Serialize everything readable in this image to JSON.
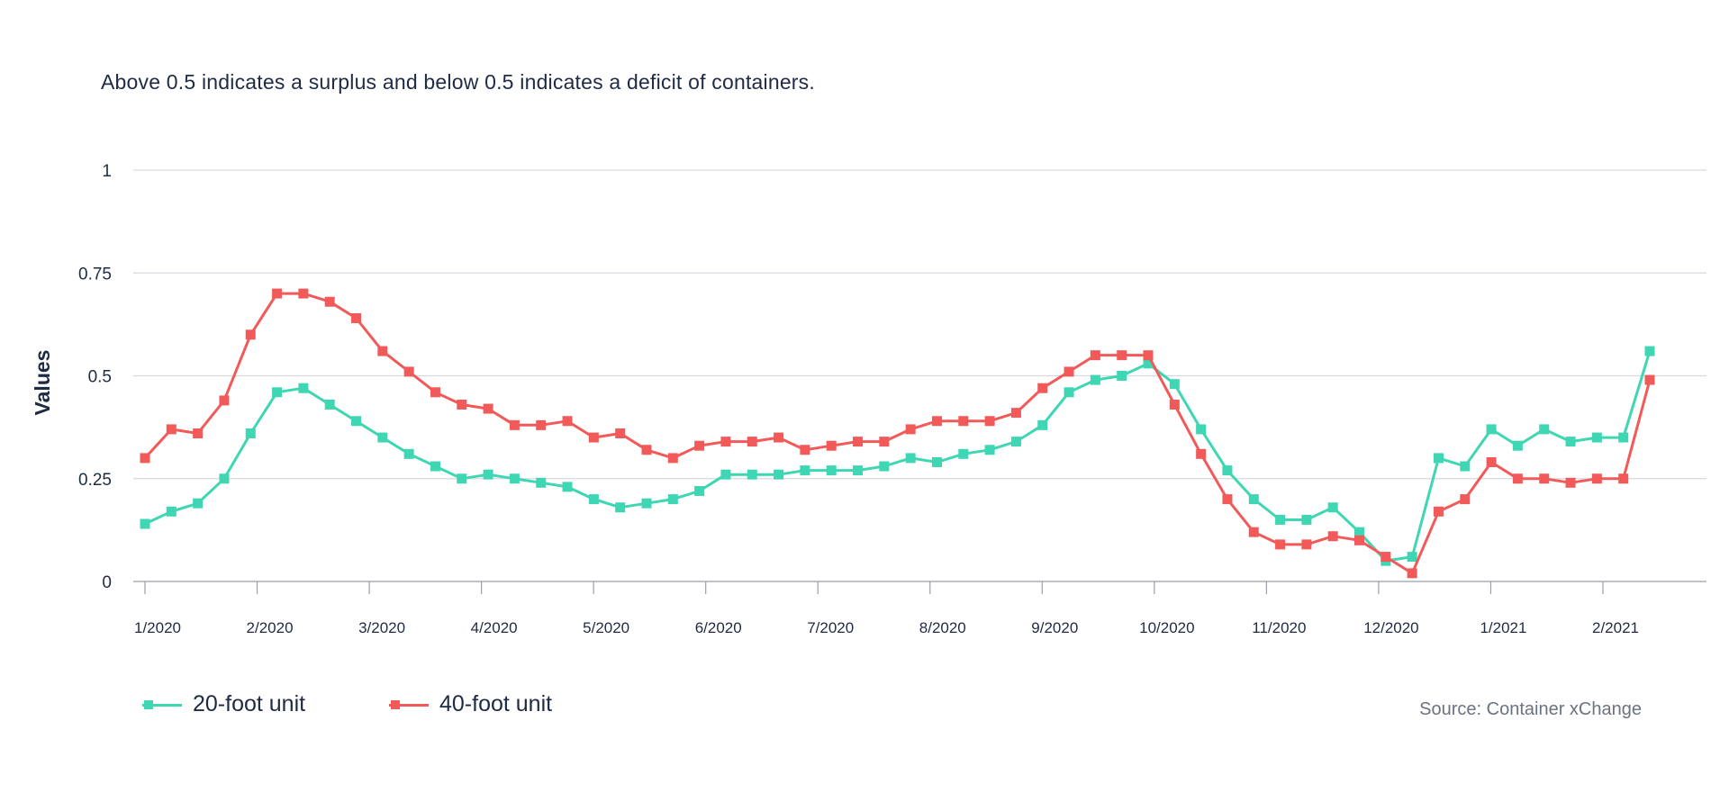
{
  "chart_data": {
    "type": "line",
    "title": "",
    "subtitle": "Above 0.5 indicates a surplus and below 0.5 indicates a deficit of containers.",
    "xlabel": "",
    "ylabel": "Values",
    "ylim": [
      0,
      1
    ],
    "yticks": [
      {
        "value": 0,
        "label": "0"
      },
      {
        "value": 0.25,
        "label": "0.25"
      },
      {
        "value": 0.5,
        "label": "0.5"
      },
      {
        "value": 0.75,
        "label": "0.75"
      },
      {
        "value": 1,
        "label": "1"
      }
    ],
    "xticks": [
      "1/2020",
      "2/2020",
      "3/2020",
      "4/2020",
      "5/2020",
      "6/2020",
      "7/2020",
      "8/2020",
      "9/2020",
      "10/2020",
      "11/2020",
      "12/2020",
      "1/2021",
      "2/2021"
    ],
    "grid": true,
    "legend_position": "bottom-left",
    "source": "Source: Container xChange",
    "series": [
      {
        "name": "20-foot unit",
        "color": "#3fd6b3",
        "values": [
          0.14,
          0.17,
          0.19,
          0.25,
          0.36,
          0.46,
          0.47,
          0.43,
          0.39,
          0.35,
          0.31,
          0.28,
          0.25,
          0.26,
          0.25,
          0.24,
          0.23,
          0.2,
          0.18,
          0.19,
          0.2,
          0.22,
          0.26,
          0.26,
          0.26,
          0.27,
          0.27,
          0.27,
          0.28,
          0.3,
          0.29,
          0.31,
          0.32,
          0.34,
          0.38,
          0.46,
          0.49,
          0.5,
          0.53,
          0.48,
          0.37,
          0.27,
          0.2,
          0.15,
          0.15,
          0.18,
          0.12,
          0.05,
          0.06,
          0.3,
          0.28,
          0.37,
          0.33,
          0.37,
          0.34,
          0.35,
          0.35,
          0.56
        ]
      },
      {
        "name": "40-foot unit",
        "color": "#f25a5a",
        "values": [
          0.3,
          0.37,
          0.36,
          0.44,
          0.6,
          0.7,
          0.7,
          0.68,
          0.64,
          0.56,
          0.51,
          0.46,
          0.43,
          0.42,
          0.38,
          0.38,
          0.39,
          0.35,
          0.36,
          0.32,
          0.3,
          0.33,
          0.34,
          0.34,
          0.35,
          0.32,
          0.33,
          0.34,
          0.34,
          0.37,
          0.39,
          0.39,
          0.39,
          0.41,
          0.47,
          0.51,
          0.55,
          0.55,
          0.55,
          0.43,
          0.31,
          0.2,
          0.12,
          0.09,
          0.09,
          0.11,
          0.1,
          0.06,
          0.02,
          0.17,
          0.2,
          0.29,
          0.25,
          0.25,
          0.24,
          0.25,
          0.25,
          0.49
        ]
      }
    ]
  }
}
